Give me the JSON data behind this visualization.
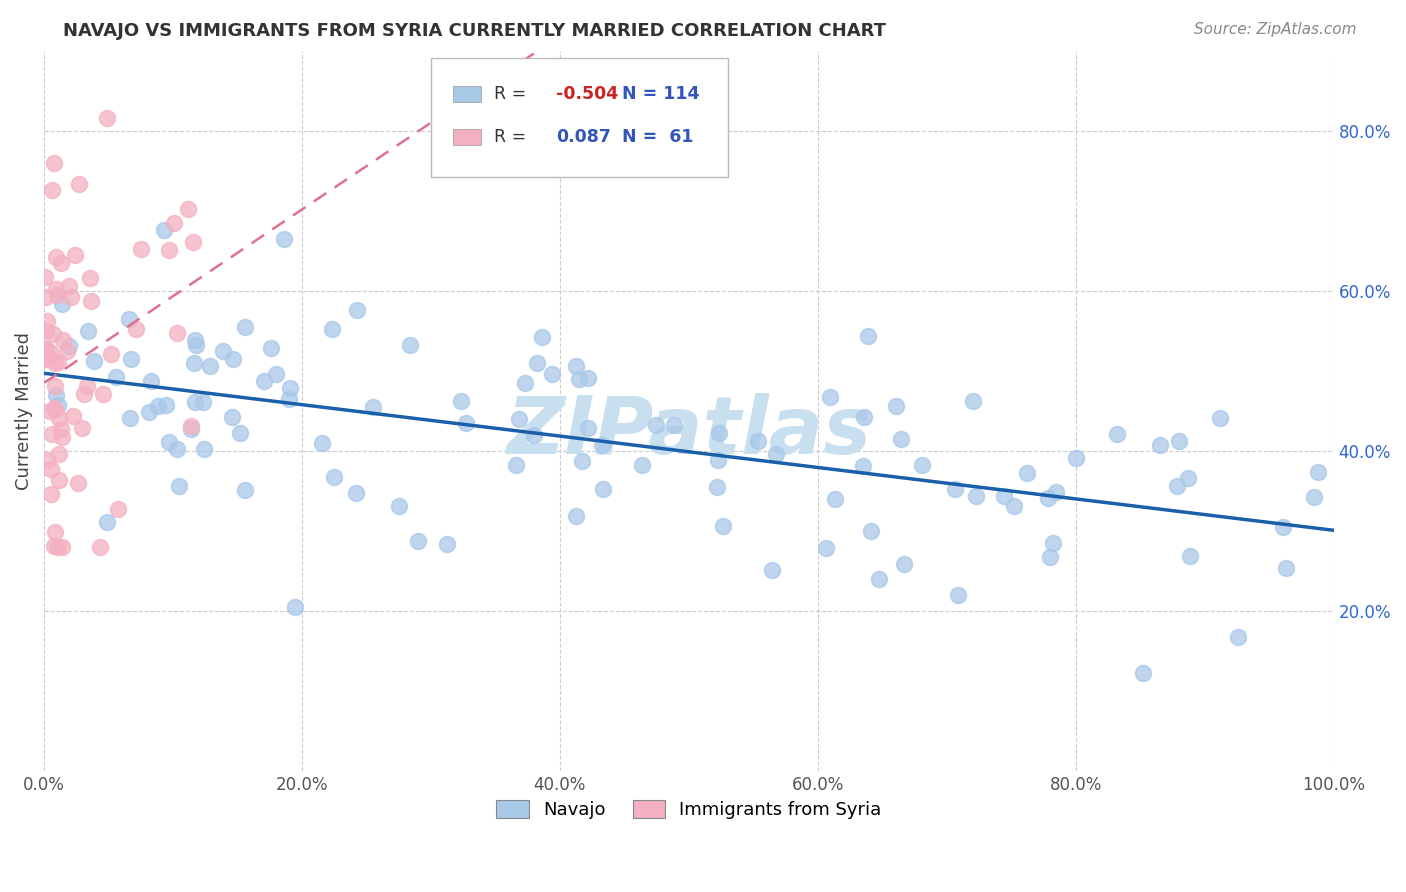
{
  "title": "NAVAJO VS IMMIGRANTS FROM SYRIA CURRENTLY MARRIED CORRELATION CHART",
  "source": "Source: ZipAtlas.com",
  "ylabel_label": "Currently Married",
  "x_min": 0.0,
  "x_max": 1.0,
  "y_min": 0.0,
  "y_max": 0.9,
  "x_tick_labels": [
    "0.0%",
    "20.0%",
    "40.0%",
    "60.0%",
    "80.0%",
    "100.0%"
  ],
  "x_tick_vals": [
    0.0,
    0.2,
    0.4,
    0.6,
    0.8,
    1.0
  ],
  "y_tick_labels": [
    "20.0%",
    "40.0%",
    "60.0%",
    "80.0%"
  ],
  "y_tick_vals": [
    0.2,
    0.4,
    0.6,
    0.8
  ],
  "navajo_R": -0.504,
  "navajo_N": 114,
  "syria_R": 0.087,
  "syria_N": 61,
  "navajo_color": "#a8c8e8",
  "syria_color": "#f4b0c0",
  "navajo_line_color": "#1a5faa",
  "syria_line_color": "#e07090",
  "background_color": "#ffffff",
  "grid_color": "#cccccc",
  "watermark_text": "ZIPatlas",
  "watermark_color": "#c8dff0",
  "legend_navajo_label": "Navajo",
  "legend_syria_label": "Immigrants from Syria",
  "title_color": "#333333",
  "source_color": "#888888",
  "ylabel_color": "#444444",
  "ytick_color": "#3366cc",
  "xtick_color": "#555555"
}
